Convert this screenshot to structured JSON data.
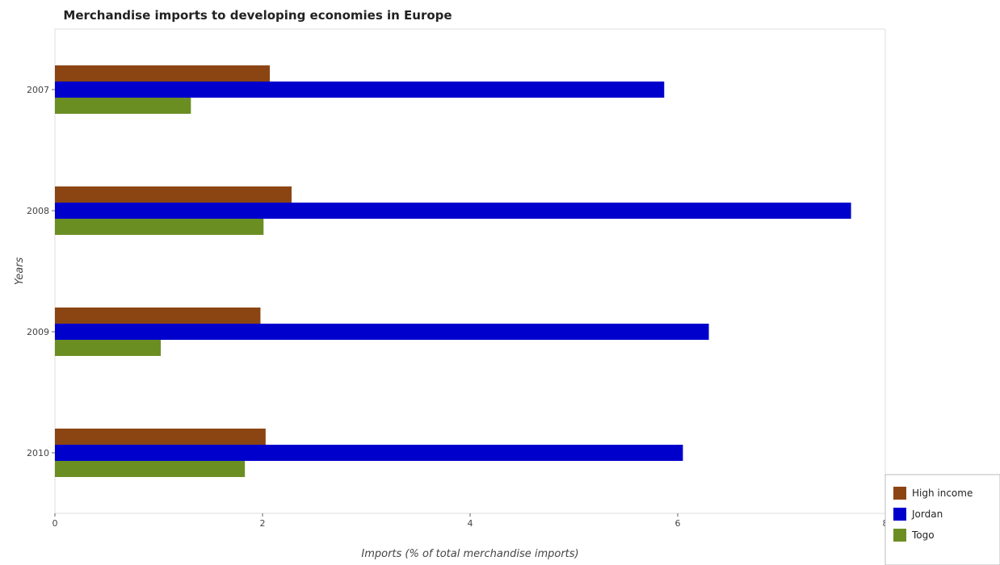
{
  "chart_data": {
    "type": "bar",
    "orientation": "horizontal",
    "title": "Merchandise imports to developing economies in Europe",
    "xlabel": "Imports (% of total merchandise imports)",
    "ylabel": "Years",
    "categories": [
      "2007",
      "2008",
      "2009",
      "2010"
    ],
    "xlim": [
      0,
      8
    ],
    "xticks": [
      "0",
      "2",
      "4",
      "6",
      "8"
    ],
    "grid": false,
    "legend_position": "bottom-right",
    "series": [
      {
        "name": "High income",
        "color": "#8b4513",
        "values": [
          2.07,
          2.28,
          1.98,
          2.03
        ]
      },
      {
        "name": "Jordan",
        "color": "#0000cd",
        "values": [
          5.87,
          7.67,
          6.3,
          6.05
        ]
      },
      {
        "name": "Togo",
        "color": "#6b8e23",
        "values": [
          1.31,
          2.01,
          1.02,
          1.83
        ]
      }
    ]
  }
}
